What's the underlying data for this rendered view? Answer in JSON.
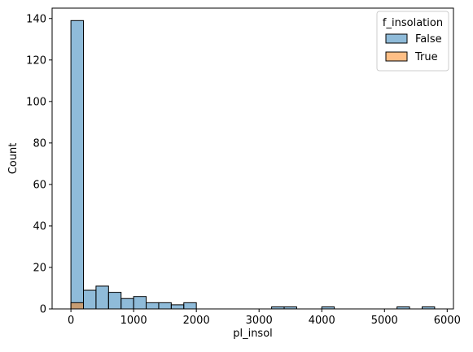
{
  "chart_data": {
    "type": "bar",
    "subtype": "histogram",
    "xlabel": "pl_insol",
    "ylabel": "Count",
    "xlim": [
      -300,
      6100
    ],
    "ylim": [
      0,
      145
    ],
    "xticks": [
      0,
      1000,
      2000,
      3000,
      4000,
      5000,
      6000
    ],
    "yticks": [
      0,
      20,
      40,
      60,
      80,
      100,
      120,
      140
    ],
    "bin_width": 200,
    "bin_start": 0,
    "legend": {
      "title": "f_insolation",
      "position": "top-right",
      "entries": [
        "False",
        "True"
      ]
    },
    "series": [
      {
        "name": "False",
        "color": "#1f77b4",
        "values": [
          139,
          9,
          11,
          8,
          5,
          6,
          3,
          3,
          2,
          3,
          0,
          0,
          0,
          0,
          0,
          0,
          1,
          1,
          0,
          0,
          1,
          0,
          0,
          0,
          0,
          0,
          1,
          0,
          1
        ]
      },
      {
        "name": "True",
        "color": "#ff7f0e",
        "values": [
          3,
          0,
          0,
          0,
          0,
          0,
          0,
          0,
          0,
          0,
          0,
          0,
          0,
          0,
          0,
          0,
          0,
          0,
          0,
          0,
          0,
          0,
          0,
          0,
          0,
          0,
          0,
          0,
          0
        ]
      }
    ]
  }
}
